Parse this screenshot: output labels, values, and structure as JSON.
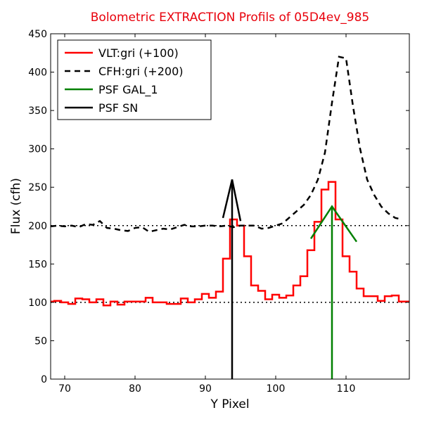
{
  "chart_data": {
    "type": "line",
    "title": "Bolometric EXTRACTION Profils of 05D4ev_985",
    "title_color": "#e8000b",
    "xlabel": "Y Pixel",
    "ylabel": "Flux (cfh)",
    "xlim": [
      68,
      119
    ],
    "ylim": [
      0,
      450
    ],
    "xticks": [
      70,
      80,
      90,
      100,
      110
    ],
    "yticks": [
      0,
      50,
      100,
      150,
      200,
      250,
      300,
      350,
      400,
      450
    ],
    "grid": false,
    "legend_position": "top-left",
    "reference_lines": [
      {
        "y": 100,
        "color": "#000000",
        "style": "dotted"
      },
      {
        "y": 200,
        "color": "#000000",
        "style": "dotted"
      }
    ],
    "series": [
      {
        "name": "VLT:gri (+100)",
        "color": "#ff0000",
        "style": "step",
        "x": [
          68,
          69,
          70,
          71,
          72,
          73,
          74,
          75,
          76,
          77,
          78,
          79,
          80,
          81,
          82,
          83,
          84,
          85,
          86,
          87,
          88,
          89,
          90,
          91,
          92,
          93,
          94,
          95,
          96,
          97,
          98,
          99,
          100,
          101,
          102,
          103,
          104,
          105,
          106,
          107,
          108,
          109,
          110,
          111,
          112,
          113,
          114,
          115,
          116,
          117,
          118,
          119
        ],
        "y": [
          101,
          102,
          100,
          98,
          105,
          104,
          100,
          104,
          96,
          101,
          97,
          101,
          101,
          101,
          106,
          100,
          100,
          98,
          98,
          105,
          100,
          104,
          111,
          106,
          114,
          157,
          208,
          200,
          160,
          122,
          115,
          104,
          110,
          106,
          109,
          122,
          134,
          168,
          205,
          247,
          257,
          208,
          160,
          140,
          118,
          108,
          108,
          102,
          108,
          109,
          101,
          101
        ]
      },
      {
        "name": "CFH:gri (+200)",
        "color": "#000000",
        "style": "dashed",
        "x": [
          68,
          69,
          70,
          71,
          72,
          73,
          74,
          75,
          76,
          77,
          78,
          79,
          80,
          81,
          82,
          83,
          84,
          85,
          86,
          87,
          88,
          89,
          90,
          91,
          92,
          93,
          94,
          95,
          96,
          97,
          98,
          99,
          100,
          101,
          102,
          103,
          104,
          105,
          106,
          107,
          108,
          109,
          110,
          111,
          112,
          113,
          114,
          115,
          116,
          117,
          118
        ],
        "y": [
          199,
          200,
          199,
          200,
          198,
          202,
          201,
          206,
          197,
          196,
          194,
          193,
          197,
          198,
          192,
          194,
          196,
          195,
          198,
          201,
          199,
          199,
          200,
          200,
          199,
          200,
          198,
          200,
          200,
          200,
          196,
          197,
          200,
          203,
          211,
          219,
          227,
          240,
          260,
          295,
          360,
          420,
          418,
          355,
          300,
          260,
          240,
          225,
          216,
          210,
          208
        ]
      },
      {
        "name": "PSF GAL_1",
        "color": "#008000",
        "style": "solid",
        "x": [
          105,
          108,
          111.5
        ],
        "y": [
          183,
          225,
          179
        ]
      },
      {
        "name": "PSF SN",
        "color": "#000000",
        "style": "solid",
        "x": [
          92.5,
          93.8,
          95
        ],
        "y": [
          210,
          260,
          206
        ]
      }
    ],
    "vertical_markers": [
      {
        "series": "PSF SN",
        "x": 93.8,
        "color": "#000000",
        "y_top": 260
      },
      {
        "series": "PSF GAL_1",
        "x": 108,
        "color": "#008000",
        "y_top": 225
      }
    ]
  }
}
